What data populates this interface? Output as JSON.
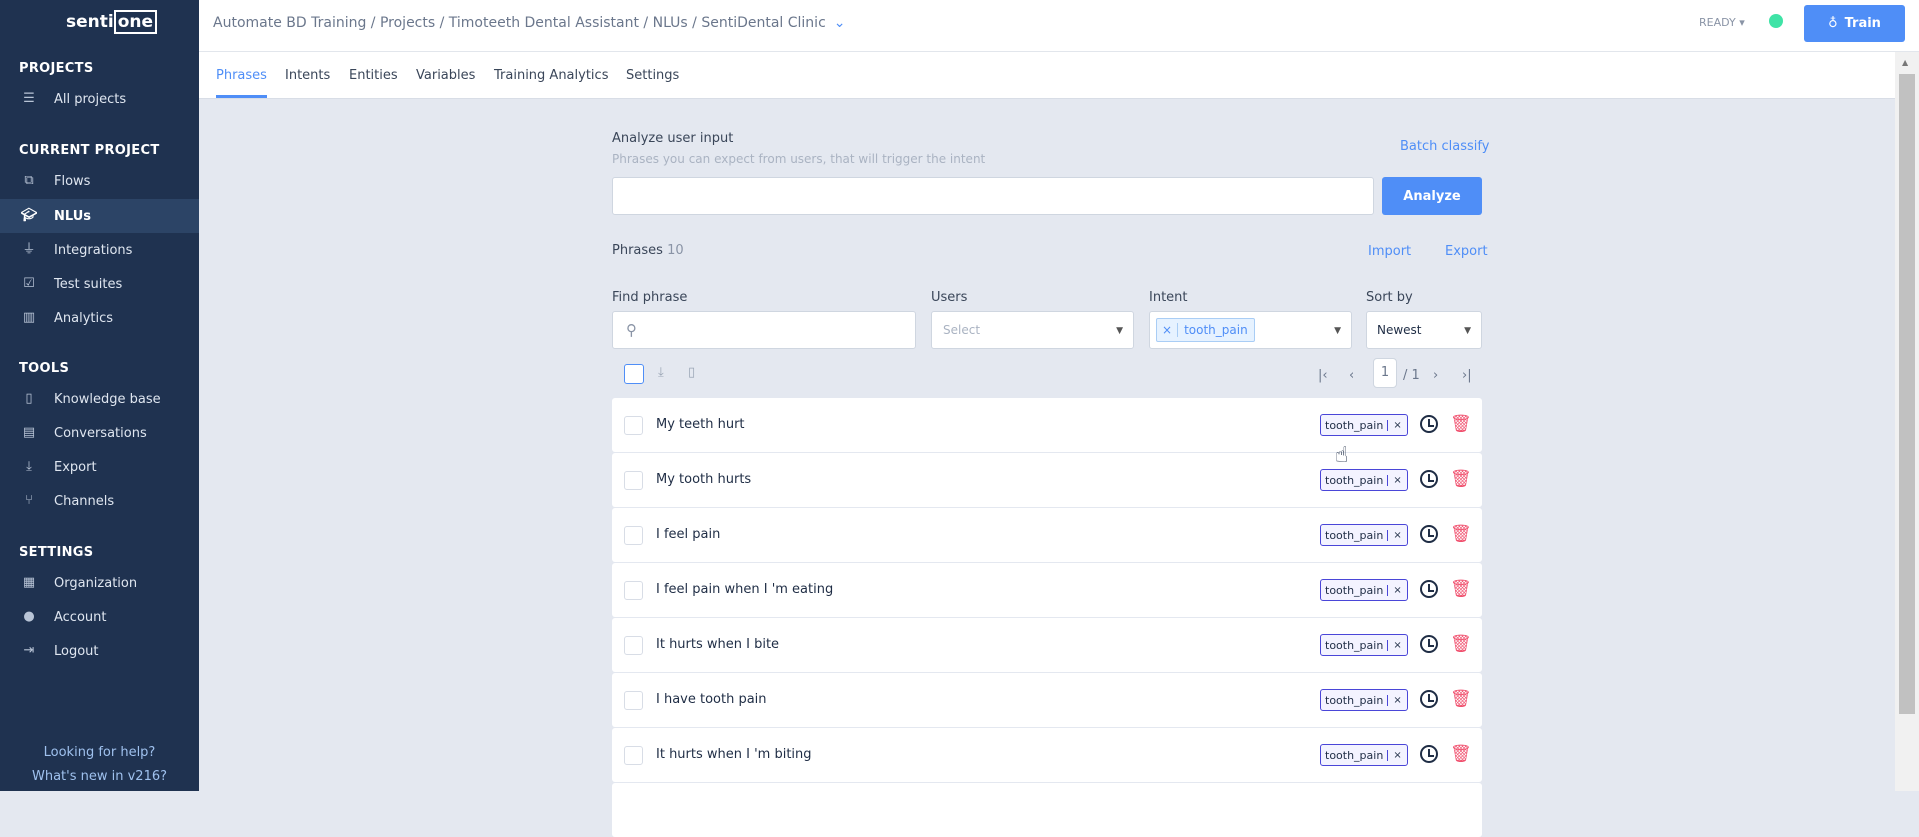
{
  "sidebar": {
    "logo": "sentione",
    "sections": {
      "projects": "PROJECTS",
      "current": "CURRENT PROJECT",
      "tools": "TOOLS",
      "settings": "SETTINGS"
    },
    "items": [
      {
        "label": "All projects",
        "icon": "list-icon"
      },
      {
        "label": "Flows",
        "icon": "flows-icon"
      },
      {
        "label": "NLUs",
        "icon": "graduation-cap-icon",
        "active": true
      },
      {
        "label": "Integrations",
        "icon": "plug-icon"
      },
      {
        "label": "Test suites",
        "icon": "checklist-icon"
      },
      {
        "label": "Analytics",
        "icon": "bar-chart-icon"
      },
      {
        "label": "Knowledge base",
        "icon": "book-icon"
      },
      {
        "label": "Conversations",
        "icon": "chat-icon"
      },
      {
        "label": "Export",
        "icon": "download-icon"
      },
      {
        "label": "Channels",
        "icon": "channels-icon"
      },
      {
        "label": "Organization",
        "icon": "building-icon"
      },
      {
        "label": "Account",
        "icon": "user-icon"
      },
      {
        "label": "Logout",
        "icon": "logout-icon"
      }
    ],
    "help": "Looking for help?",
    "whats_new": "What's new in v216?"
  },
  "header": {
    "breadcrumb": "Automate BD Training / Projects / Timoteeth Dental Assistant / NLUs / SentiDental Clinic",
    "status": "READY",
    "status_color": "#3fe3a6",
    "train": "Train"
  },
  "tabs": [
    "Phrases",
    "Intents",
    "Entities",
    "Variables",
    "Training Analytics",
    "Settings"
  ],
  "analyze": {
    "title": "Analyze user input",
    "subtitle": "Phrases you can expect from users, that will trigger the intent",
    "batch": "Batch classify",
    "input_value": "",
    "button": "Analyze"
  },
  "phrases": {
    "label": "Phrases",
    "count": "10",
    "import": "Import",
    "export": "Export"
  },
  "filters": {
    "find_label": "Find phrase",
    "users_label": "Users",
    "users_placeholder": "Select",
    "intent_label": "Intent",
    "intent_chip": "tooth_pain",
    "sort_label": "Sort by",
    "sort_value": "Newest"
  },
  "pagination": {
    "page": "1",
    "total": "/ 1"
  },
  "rows": [
    {
      "text": "My teeth hurt",
      "intent": "tooth_pain"
    },
    {
      "text": "My tooth hurts",
      "intent": "tooth_pain"
    },
    {
      "text": "I feel pain",
      "intent": "tooth_pain"
    },
    {
      "text": "I feel pain when I 'm eating",
      "intent": "tooth_pain"
    },
    {
      "text": "It hurts when I bite",
      "intent": "tooth_pain"
    },
    {
      "text": "I have tooth pain",
      "intent": "tooth_pain"
    },
    {
      "text": "It hurts when I 'm biting",
      "intent": "tooth_pain"
    }
  ]
}
